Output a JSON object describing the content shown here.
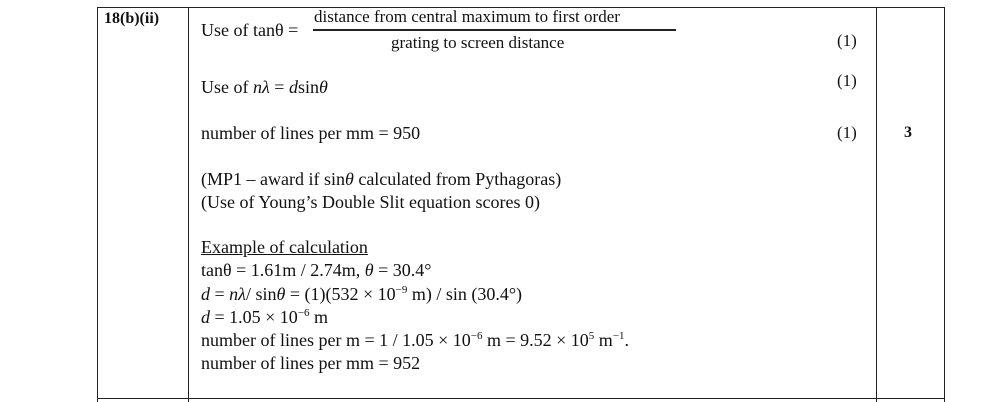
{
  "question_number": "18(b)(ii)",
  "total_mark": "3",
  "tan_line": {
    "lead": "Use of tanθ =",
    "numerator": "distance from central maximum to first order",
    "denominator": "grating to screen distance",
    "mark": "(1)"
  },
  "sin_line": {
    "parts": [
      "Use of ",
      "nλ",
      " = ",
      "d",
      "sin",
      "θ"
    ],
    "mark": "(1)"
  },
  "result_line": {
    "text": "number of lines per mm = 950",
    "mark": "(1)"
  },
  "notes": [
    [
      "(MP1 – award if sin",
      "θ",
      " calculated from Pythagoras)"
    ],
    [
      "(Use of Young’s Double Slit equation scores 0)"
    ]
  ],
  "example": {
    "heading": "Example of calculation",
    "lines": [
      [
        "tanθ = 1.61m / 2.74m, ",
        "θ",
        " = 30.4°"
      ],
      [
        "d",
        " = ",
        "nλ",
        "/ sin",
        "θ",
        " = (1)(532 × 10",
        "−9",
        " m) / sin (30.4°)"
      ],
      [
        "d",
        " = 1.05 × 10",
        "−6",
        " m"
      ],
      [
        "number of lines per m = 1 / 1.05 × 10",
        "−6",
        " m = 9.52 × 10",
        "5",
        " m",
        "−1",
        "."
      ],
      [
        "number of lines per mm = 952"
      ]
    ]
  }
}
